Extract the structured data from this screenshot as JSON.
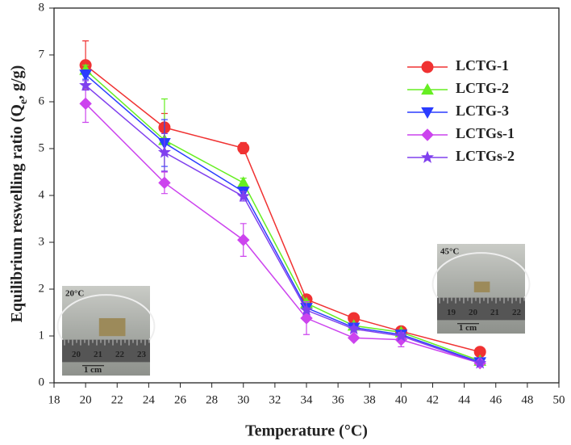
{
  "chart_data": {
    "type": "line",
    "xlabel": "Temperature (°C)",
    "ylabel": [
      "Equilibrium reswelling ratio (Q",
      "e",
      ", g/g)"
    ],
    "x": [
      20,
      25,
      30,
      34,
      37,
      40,
      45
    ],
    "xlim": [
      18,
      50
    ],
    "xticks": [
      18,
      20,
      22,
      24,
      26,
      28,
      30,
      32,
      34,
      36,
      38,
      40,
      42,
      44,
      46,
      48,
      50
    ],
    "ylim": [
      0,
      8
    ],
    "yticks": [
      0,
      1,
      2,
      3,
      4,
      5,
      6,
      7,
      8
    ],
    "legend": "upper-right",
    "series": [
      {
        "name": "LCTG-1",
        "color": "#f03232",
        "marker": "circle",
        "values": [
          6.78,
          5.45,
          5.01,
          1.78,
          1.38,
          1.1,
          0.66
        ],
        "errors": [
          0.52,
          0.3,
          0.12,
          0.05,
          0.1,
          0.05,
          0.05
        ]
      },
      {
        "name": "LCTG-2",
        "color": "#66ee22",
        "marker": "triangle-up",
        "values": [
          6.68,
          5.18,
          4.27,
          1.7,
          1.22,
          1.08,
          0.47
        ],
        "errors": [
          0.1,
          0.88,
          0.1,
          0.05,
          0.05,
          0.05,
          0.05
        ]
      },
      {
        "name": "LCTG-3",
        "color": "#2a3cff",
        "marker": "triangle-down",
        "values": [
          6.58,
          5.12,
          4.08,
          1.6,
          1.18,
          1.03,
          0.44
        ],
        "errors": [
          0.1,
          0.5,
          0.1,
          0.05,
          0.05,
          0.05,
          0.05
        ]
      },
      {
        "name": "LCTGs-1",
        "color": "#cc44ee",
        "marker": "diamond",
        "values": [
          5.96,
          4.27,
          3.05,
          1.38,
          0.96,
          0.92,
          0.42
        ],
        "errors": [
          0.4,
          0.23,
          0.35,
          0.35,
          0.05,
          0.15,
          0.05
        ]
      },
      {
        "name": "LCTGs-2",
        "color": "#8040ee",
        "marker": "star",
        "values": [
          6.35,
          4.92,
          3.98,
          1.55,
          1.15,
          1.0,
          0.42
        ],
        "errors": [
          0.1,
          0.4,
          0.1,
          0.05,
          0.05,
          0.05,
          0.05
        ]
      }
    ],
    "insets": [
      {
        "label": "20°C",
        "ruler": [
          "20",
          "21",
          "22",
          "23"
        ],
        "scale": "1 cm"
      },
      {
        "label": "45°C",
        "ruler": [
          "19",
          "20",
          "21",
          "22"
        ],
        "scale": "1 cm"
      }
    ]
  }
}
